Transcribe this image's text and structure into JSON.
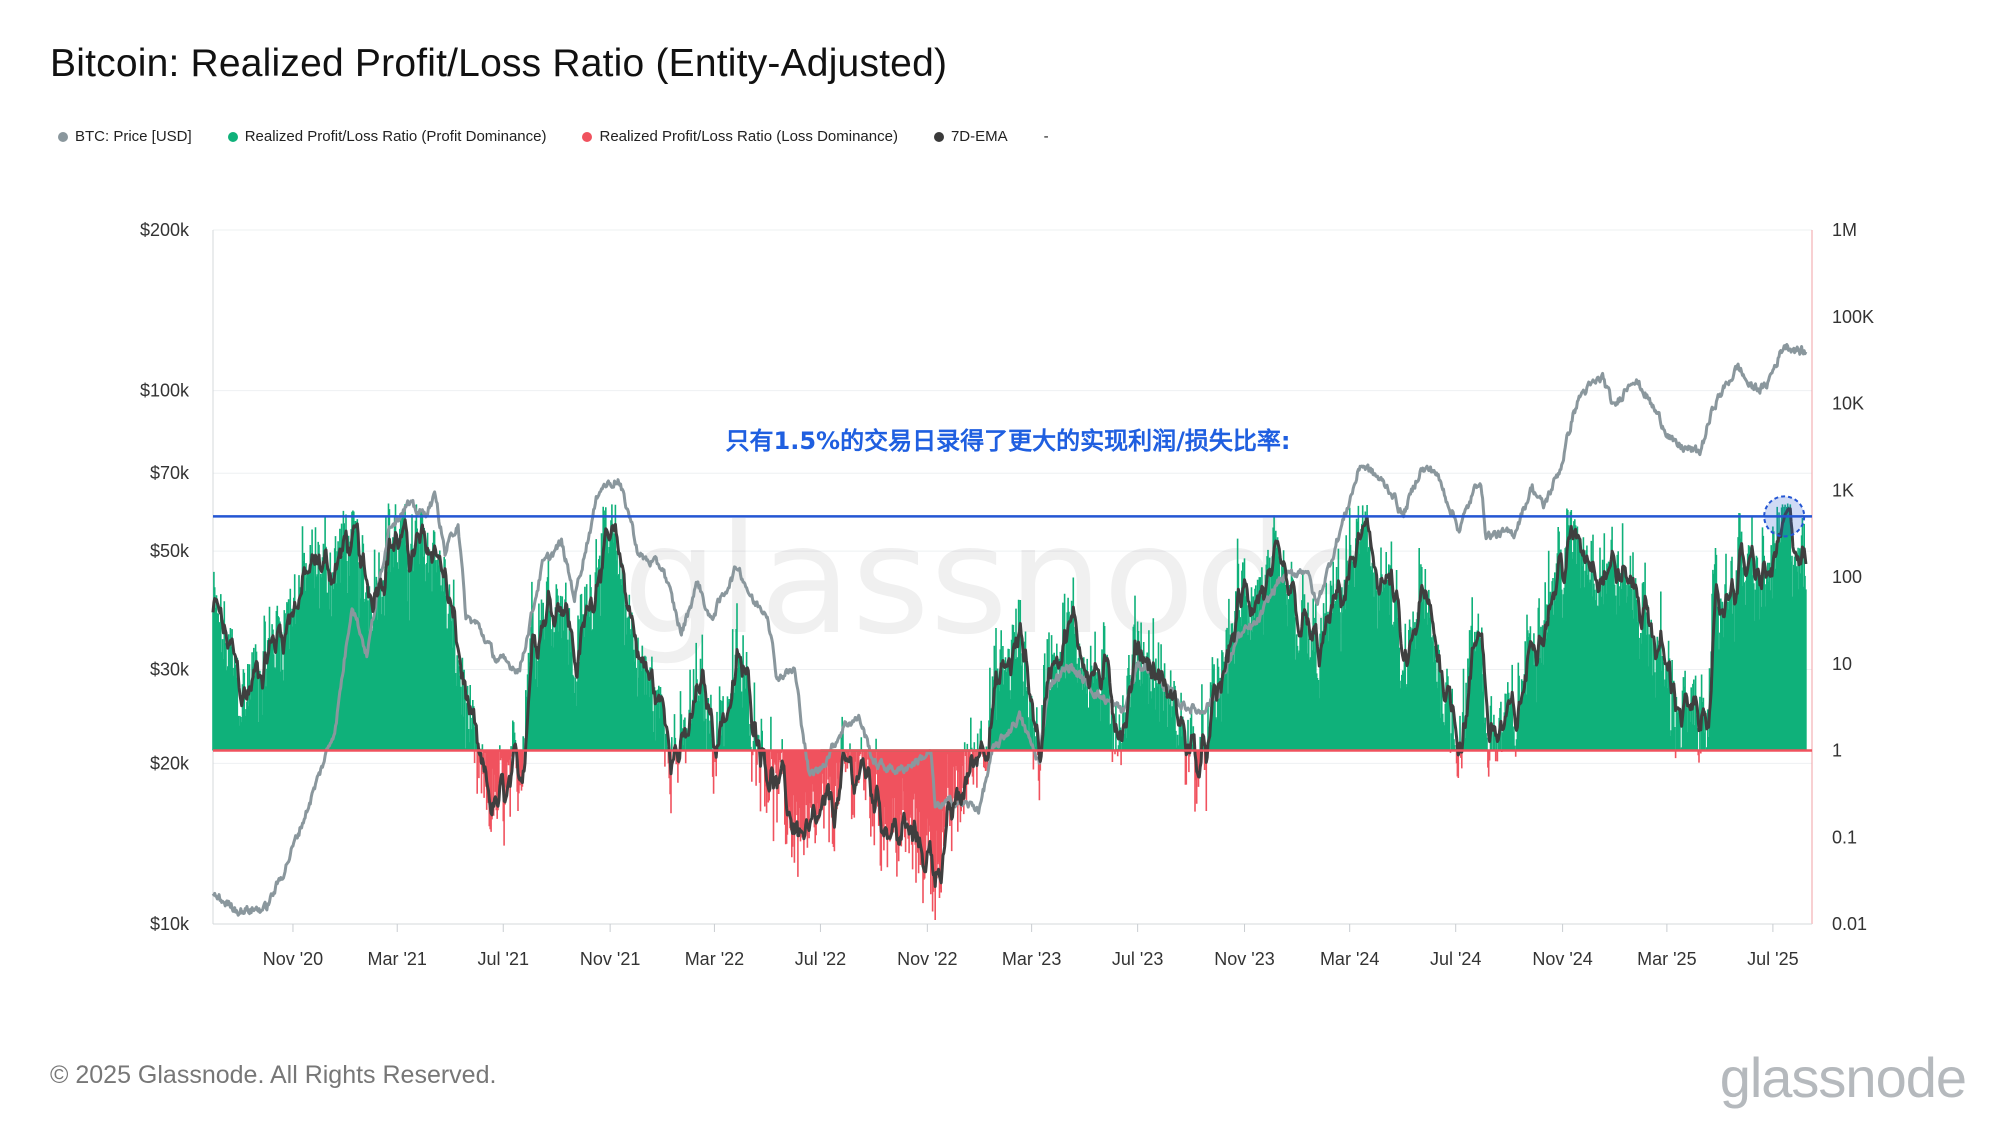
{
  "title": "Bitcoin: Realized Profit/Loss Ratio (Entity-Adjusted)",
  "legend": [
    {
      "label": "BTC: Price [USD]",
      "color": "#8a979d"
    },
    {
      "label": "Realized Profit/Loss Ratio (Profit Dominance)",
      "color": "#0fb17a"
    },
    {
      "label": "Realized Profit/Loss Ratio (Loss Dominance)",
      "color": "#f0525e"
    },
    {
      "label": "7D-EMA",
      "color": "#3a3a3a"
    },
    {
      "label": "-",
      "color": ""
    }
  ],
  "footer": {
    "copyright": "© 2025 Glassnode. All Rights Reserved.",
    "logo": "glassnode"
  },
  "chart_data": {
    "type": "line",
    "annotation": "只有1.5%的交易日录得了更大的实现利润/损失比率:",
    "watermark": "glassnode",
    "y_left": {
      "scale": "log",
      "range": [
        10000,
        200000
      ],
      "ticks": [
        {
          "v": 10000,
          "label": "$10k"
        },
        {
          "v": 20000,
          "label": "$20k"
        },
        {
          "v": 30000,
          "label": "$30k"
        },
        {
          "v": 50000,
          "label": "$50k"
        },
        {
          "v": 70000,
          "label": "$70k"
        },
        {
          "v": 100000,
          "label": "$100k"
        },
        {
          "v": 200000,
          "label": "$200k"
        }
      ]
    },
    "y_right": {
      "scale": "log",
      "range": [
        0.01,
        1000000
      ],
      "ticks": [
        {
          "v": 0.01,
          "label": "0.01"
        },
        {
          "v": 0.1,
          "label": "0.1"
        },
        {
          "v": 1,
          "label": "1"
        },
        {
          "v": 10,
          "label": "10"
        },
        {
          "v": 100,
          "label": "100"
        },
        {
          "v": 1000,
          "label": "1K"
        },
        {
          "v": 10000,
          "label": "10K"
        },
        {
          "v": 100000,
          "label": "100K"
        },
        {
          "v": 1000000,
          "label": "1M"
        }
      ]
    },
    "x_axis": {
      "range": [
        "2020-08-01",
        "2025-08-15"
      ],
      "ticks": [
        {
          "date": "2020-11-01",
          "label": "Nov '20"
        },
        {
          "date": "2021-03-01",
          "label": "Mar '21"
        },
        {
          "date": "2021-07-01",
          "label": "Jul '21"
        },
        {
          "date": "2021-11-01",
          "label": "Nov '21"
        },
        {
          "date": "2022-03-01",
          "label": "Mar '22"
        },
        {
          "date": "2022-07-01",
          "label": "Jul '22"
        },
        {
          "date": "2022-11-01",
          "label": "Nov '22"
        },
        {
          "date": "2023-03-01",
          "label": "Mar '23"
        },
        {
          "date": "2023-07-01",
          "label": "Jul '23"
        },
        {
          "date": "2023-11-01",
          "label": "Nov '23"
        },
        {
          "date": "2024-03-01",
          "label": "Mar '24"
        },
        {
          "date": "2024-07-01",
          "label": "Jul '24"
        },
        {
          "date": "2024-11-01",
          "label": "Nov '24"
        },
        {
          "date": "2025-03-01",
          "label": "Mar '25"
        },
        {
          "date": "2025-07-01",
          "label": "Jul '25"
        }
      ]
    },
    "reference_lines": [
      {
        "name": "threshold-high",
        "axis": "right",
        "value": 500,
        "color": "#2456d3"
      },
      {
        "name": "threshold-one-profit",
        "axis": "right",
        "value": 1,
        "color": "#19b36b",
        "segment": [
          "2022-07-01",
          "2022-12-31"
        ]
      },
      {
        "name": "threshold-one",
        "axis": "right",
        "value": 1,
        "color": "#f0525e"
      }
    ],
    "price_series": {
      "name": "BTC: Price [USD]",
      "axis": "left",
      "color": "#8a979d",
      "points": [
        [
          "2020-08-01",
          11300
        ],
        [
          "2020-09-01",
          10600
        ],
        [
          "2020-10-01",
          10700
        ],
        [
          "2020-10-21",
          12500
        ],
        [
          "2020-11-15",
          16000
        ],
        [
          "2020-12-01",
          19000
        ],
        [
          "2020-12-20",
          23500
        ],
        [
          "2021-01-08",
          40000
        ],
        [
          "2021-01-25",
          32000
        ],
        [
          "2021-02-20",
          56000
        ],
        [
          "2021-03-13",
          61000
        ],
        [
          "2021-04-01",
          58500
        ],
        [
          "2021-04-14",
          63500
        ],
        [
          "2021-04-25",
          49500
        ],
        [
          "2021-05-10",
          57000
        ],
        [
          "2021-05-19",
          37500
        ],
        [
          "2021-06-01",
          36500
        ],
        [
          "2021-06-22",
          31500
        ],
        [
          "2021-07-20",
          30000
        ],
        [
          "2021-08-15",
          47000
        ],
        [
          "2021-09-06",
          51800
        ],
        [
          "2021-09-21",
          41000
        ],
        [
          "2021-10-20",
          66000
        ],
        [
          "2021-11-10",
          68000
        ],
        [
          "2021-11-25",
          57000
        ],
        [
          "2021-12-04",
          49000
        ],
        [
          "2022-01-01",
          46500
        ],
        [
          "2022-01-22",
          35000
        ],
        [
          "2022-02-10",
          44000
        ],
        [
          "2022-02-24",
          37000
        ],
        [
          "2022-03-28",
          47000
        ],
        [
          "2022-04-15",
          40000
        ],
        [
          "2022-05-01",
          38500
        ],
        [
          "2022-05-12",
          29000
        ],
        [
          "2022-06-01",
          30000
        ],
        [
          "2022-06-18",
          19000
        ],
        [
          "2022-07-01",
          19500
        ],
        [
          "2022-07-30",
          23800
        ],
        [
          "2022-08-15",
          24300
        ],
        [
          "2022-09-01",
          20000
        ],
        [
          "2022-09-15",
          19700
        ],
        [
          "2022-10-01",
          19400
        ],
        [
          "2022-11-05",
          21000
        ],
        [
          "2022-11-10",
          16500
        ],
        [
          "2022-12-01",
          17000
        ],
        [
          "2022-12-31",
          16500
        ],
        [
          "2023-01-15",
          21000
        ],
        [
          "2023-02-15",
          24500
        ],
        [
          "2023-03-10",
          20000
        ],
        [
          "2023-03-20",
          28000
        ],
        [
          "2023-04-14",
          30500
        ],
        [
          "2023-05-15",
          27000
        ],
        [
          "2023-06-15",
          25000
        ],
        [
          "2023-07-01",
          30500
        ],
        [
          "2023-07-15",
          30300
        ],
        [
          "2023-08-17",
          26000
        ],
        [
          "2023-09-11",
          25000
        ],
        [
          "2023-10-01",
          27000
        ],
        [
          "2023-10-24",
          34500
        ],
        [
          "2023-11-15",
          36500
        ],
        [
          "2023-12-10",
          44000
        ],
        [
          "2024-01-11",
          46500
        ],
        [
          "2024-01-23",
          39500
        ],
        [
          "2024-02-15",
          52000
        ],
        [
          "2024-03-14",
          73000
        ],
        [
          "2024-04-01",
          69000
        ],
        [
          "2024-04-20",
          64000
        ],
        [
          "2024-05-01",
          58000
        ],
        [
          "2024-05-21",
          71000
        ],
        [
          "2024-06-07",
          71000
        ],
        [
          "2024-07-05",
          55000
        ],
        [
          "2024-07-29",
          69000
        ],
        [
          "2024-08-05",
          53500
        ],
        [
          "2024-09-06",
          54000
        ],
        [
          "2024-09-27",
          66000
        ],
        [
          "2024-10-10",
          60500
        ],
        [
          "2024-10-30",
          72000
        ],
        [
          "2024-11-13",
          90000
        ],
        [
          "2024-11-22",
          98500
        ],
        [
          "2024-12-17",
          106000
        ],
        [
          "2024-12-30",
          92500
        ],
        [
          "2025-01-20",
          106000
        ],
        [
          "2025-02-01",
          100500
        ],
        [
          "2025-02-28",
          84500
        ],
        [
          "2025-03-10",
          79000
        ],
        [
          "2025-04-08",
          76500
        ],
        [
          "2025-04-25",
          94500
        ],
        [
          "2025-05-22",
          111000
        ],
        [
          "2025-06-05",
          101500
        ],
        [
          "2025-06-22",
          101000
        ],
        [
          "2025-07-14",
          122000
        ],
        [
          "2025-08-08",
          117500
        ]
      ]
    },
    "ratio_anchors": {
      "name": "Realized Profit/Loss Ratio",
      "axis": "right",
      "profit_color": "#0fb17a",
      "loss_color": "#f0525e",
      "points": [
        [
          "2020-08-01",
          40
        ],
        [
          "2020-09-05",
          4
        ],
        [
          "2020-10-10",
          20
        ],
        [
          "2020-11-15",
          100
        ],
        [
          "2020-12-20",
          150
        ],
        [
          "2021-01-08",
          300
        ],
        [
          "2021-01-22",
          60
        ],
        [
          "2021-02-20",
          300
        ],
        [
          "2021-03-13",
          200
        ],
        [
          "2021-04-14",
          250
        ],
        [
          "2021-05-19",
          3
        ],
        [
          "2021-06-01",
          0.4
        ],
        [
          "2021-06-22",
          0.2
        ],
        [
          "2021-07-20",
          0.5
        ],
        [
          "2021-08-01",
          30
        ],
        [
          "2021-09-06",
          80
        ],
        [
          "2021-09-21",
          8
        ],
        [
          "2021-10-20",
          300
        ],
        [
          "2021-11-10",
          150
        ],
        [
          "2021-12-04",
          10
        ],
        [
          "2022-01-22",
          0.8
        ],
        [
          "2022-02-10",
          6
        ],
        [
          "2022-03-01",
          1.5
        ],
        [
          "2022-03-28",
          10
        ],
        [
          "2022-05-12",
          0.3
        ],
        [
          "2022-06-18",
          0.08
        ],
        [
          "2022-07-30",
          0.5
        ],
        [
          "2022-08-15",
          0.7
        ],
        [
          "2022-09-15",
          0.15
        ],
        [
          "2022-11-10",
          0.05
        ],
        [
          "2022-12-01",
          0.2
        ],
        [
          "2023-01-15",
          4
        ],
        [
          "2023-02-15",
          20
        ],
        [
          "2023-03-10",
          0.8
        ],
        [
          "2023-03-20",
          15
        ],
        [
          "2023-04-14",
          25
        ],
        [
          "2023-06-15",
          2
        ],
        [
          "2023-07-01",
          20
        ],
        [
          "2023-08-17",
          2
        ],
        [
          "2023-09-11",
          0.6
        ],
        [
          "2023-10-24",
          50
        ],
        [
          "2023-12-10",
          80
        ],
        [
          "2024-01-23",
          12
        ],
        [
          "2024-03-14",
          300
        ],
        [
          "2024-04-20",
          50
        ],
        [
          "2024-05-01",
          5
        ],
        [
          "2024-05-21",
          60
        ],
        [
          "2024-07-05",
          1.5
        ],
        [
          "2024-07-29",
          40
        ],
        [
          "2024-08-05",
          1.5
        ],
        [
          "2024-09-06",
          2
        ],
        [
          "2024-09-27",
          25
        ],
        [
          "2024-11-13",
          300
        ],
        [
          "2024-12-17",
          150
        ],
        [
          "2025-01-20",
          80
        ],
        [
          "2025-02-28",
          8
        ],
        [
          "2025-03-10",
          4
        ],
        [
          "2025-04-08",
          1.5
        ],
        [
          "2025-04-25",
          30
        ],
        [
          "2025-05-22",
          150
        ],
        [
          "2025-06-22",
          80
        ],
        [
          "2025-07-14",
          500
        ],
        [
          "2025-08-08",
          100
        ]
      ]
    },
    "highlight_marker": {
      "date": "2025-07-14",
      "value": 500,
      "color": "#2456d3"
    }
  }
}
